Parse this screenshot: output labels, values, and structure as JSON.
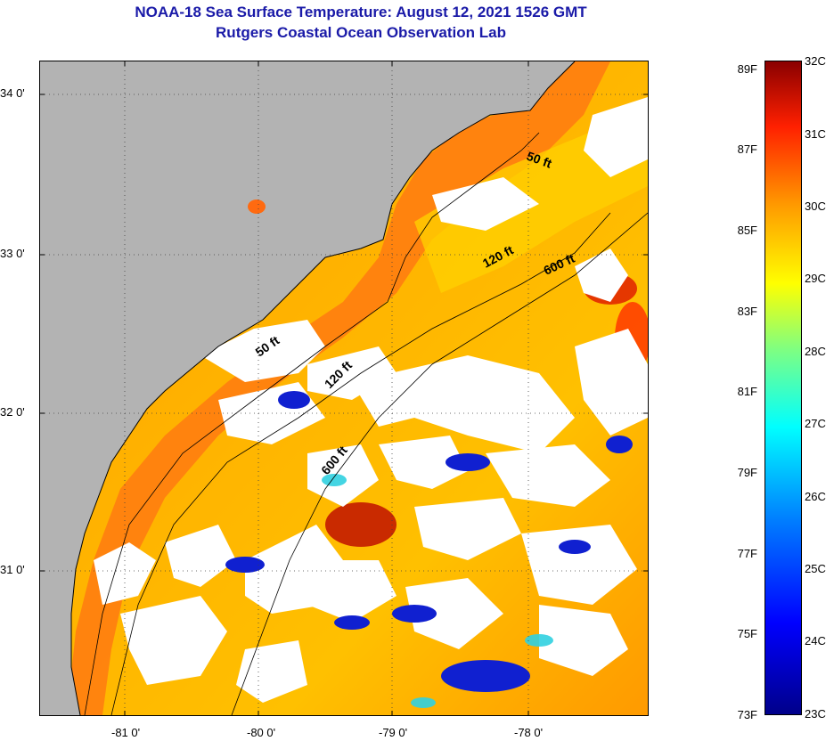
{
  "header": {
    "title": "NOAA-18 Sea Surface Temperature:  August 12, 2021 1526 GMT",
    "subtitle": "Rutgers Coastal Ocean Observation Lab"
  },
  "map": {
    "lat_ticks": [
      "34 0'",
      "33 0'",
      "32 0'",
      "31 0'"
    ],
    "lon_ticks": [
      "-81 0'",
      "-80 0'",
      "-79 0'",
      "-78 0'"
    ],
    "contour_labels": [
      "50 ft",
      "120 ft",
      "600 ft",
      "50 ft",
      "120 ft",
      "600 ft"
    ],
    "colors": {
      "land": "#b3b3b3",
      "cloud": "#ffffff",
      "contour": "#000000"
    }
  },
  "colorbar": {
    "fahrenheit": [
      "89F",
      "87F",
      "85F",
      "83F",
      "81F",
      "79F",
      "77F",
      "75F",
      "73F"
    ],
    "celsius": [
      "32C",
      "31C",
      "30C",
      "29C",
      "28C",
      "27C",
      "26C",
      "25C",
      "24C",
      "23C"
    ]
  }
}
